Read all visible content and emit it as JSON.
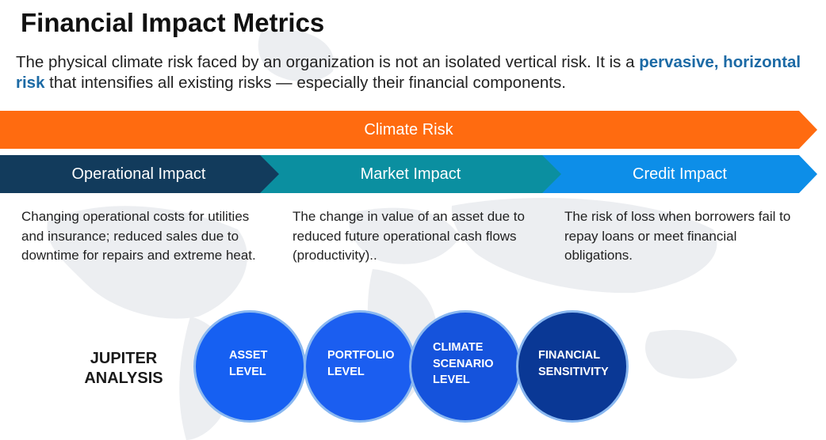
{
  "title": "Financial Impact Metrics",
  "intro": {
    "text_before": "The physical climate risk faced by an organization is not an isolated vertical risk. It is a ",
    "highlight": "pervasive, horizontal risk",
    "text_after": " that intensifies all existing risks — especially their financial components."
  },
  "climate_band": {
    "label": "Climate Risk",
    "color": "#ff6b10"
  },
  "impacts": [
    {
      "label": "Operational Impact",
      "color": "#123b5c",
      "description": "Changing operational costs for utilities and insurance; reduced sales due to downtime for repairs and extreme heat."
    },
    {
      "label": "Market Impact",
      "color": "#0b8fa0",
      "description": "The change in value of an asset due to reduced future operational cash flows (productivity).."
    },
    {
      "label": "Credit Impact",
      "color": "#0d8ee8",
      "description": "The risk of loss when borrowers fail to repay loans or meet financial obligations."
    }
  ],
  "analysis": {
    "label": "JUPITER\nANALYSIS",
    "levels": [
      {
        "label": "ASSET\nLEVEL"
      },
      {
        "label": "PORTFOLIO\nLEVEL"
      },
      {
        "label": "CLIMATE\nSCENARIO\nLEVEL"
      },
      {
        "label": "FINANCIAL\nSENSITIVITY"
      }
    ]
  }
}
